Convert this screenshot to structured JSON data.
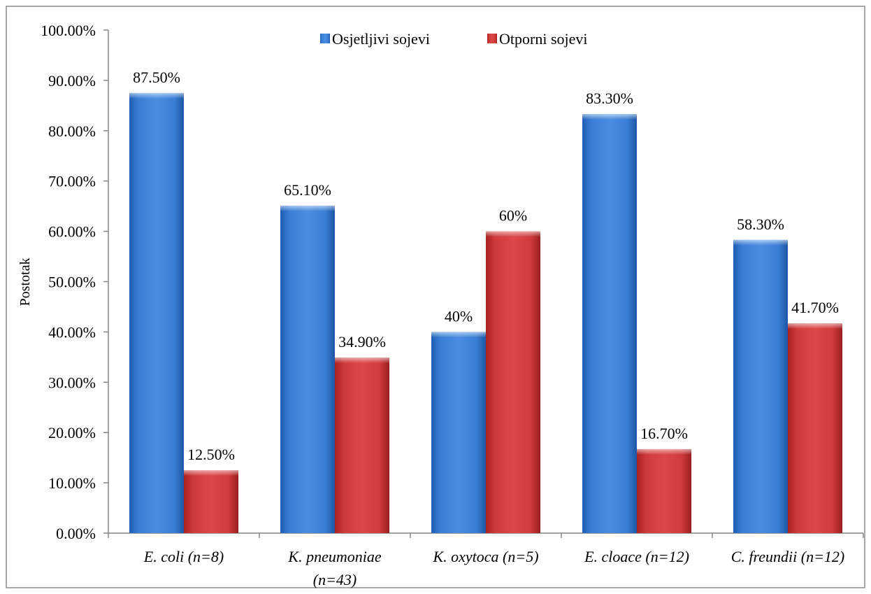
{
  "chart_data": {
    "type": "bar",
    "title": "",
    "xlabel": "",
    "ylabel": "Postotak",
    "ylim": [
      0,
      100
    ],
    "yticks": [
      "0.00%",
      "10.00%",
      "20.00%",
      "30.00%",
      "40.00%",
      "50.00%",
      "60.00%",
      "70.00%",
      "80.00%",
      "90.00%",
      "100.00%"
    ],
    "categories": [
      [
        "E. coli (n=8)"
      ],
      [
        "K. pneumoniae",
        "(n=43)"
      ],
      [
        "K. oxytoca (n=5)"
      ],
      [
        "E. cloace (n=12)"
      ],
      [
        "C. freundii (n=12)"
      ]
    ],
    "series": [
      {
        "name": "Osjetljivi sojevi",
        "color": "#3d7ccf",
        "values": [
          87.5,
          65.1,
          40,
          83.3,
          58.3
        ],
        "labels": [
          "87.50%",
          "65.10%",
          "40%",
          "83.30%",
          "58.30%"
        ]
      },
      {
        "name": "Otporni sojevi",
        "color": "#cc3333",
        "values": [
          12.5,
          34.9,
          60,
          16.7,
          41.7
        ],
        "labels": [
          "12.50%",
          "34.90%",
          "60%",
          "16.70%",
          "41.70%"
        ]
      }
    ],
    "grid": false,
    "legend": "top-center"
  }
}
